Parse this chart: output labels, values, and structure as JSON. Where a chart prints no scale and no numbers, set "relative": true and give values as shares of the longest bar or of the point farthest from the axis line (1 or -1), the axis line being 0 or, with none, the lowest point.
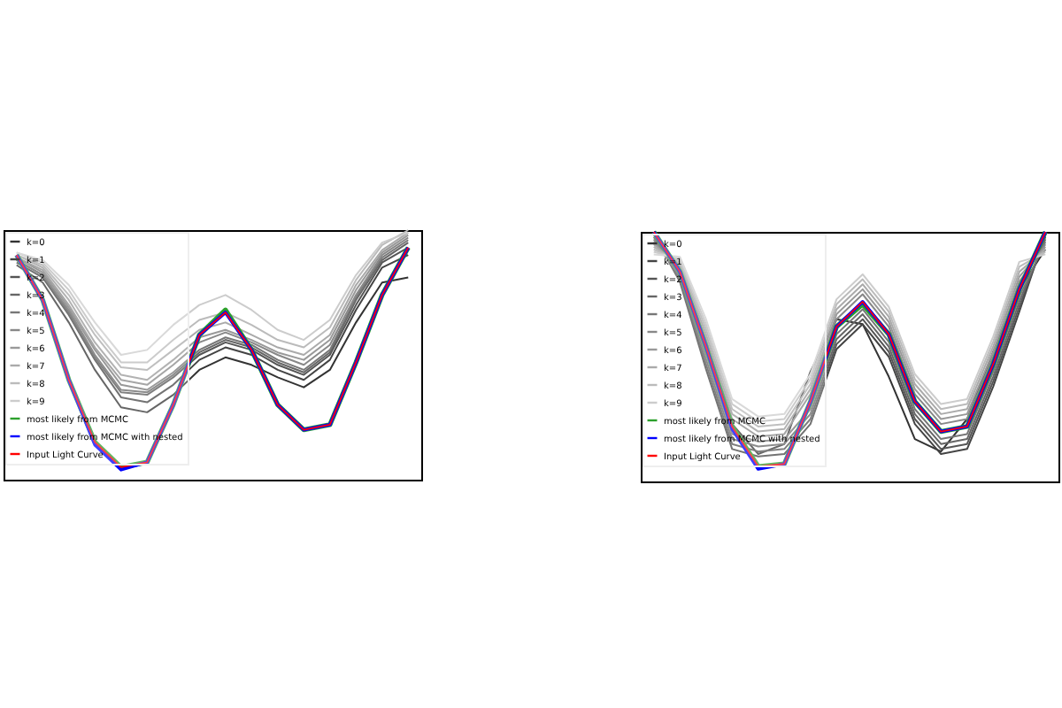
{
  "chart_data": [
    {
      "type": "line",
      "relative": true,
      "legend": "top left",
      "categories": [
        null,
        null,
        null,
        null,
        null,
        null,
        null,
        null,
        null,
        null,
        null,
        null,
        null,
        null,
        null,
        null
      ],
      "series": [
        {
          "name": "k=0",
          "color": "#333333",
          "values": [
            0.86,
            0.79,
            0.63,
            0.44,
            0.29,
            0.27,
            0.34,
            0.44,
            0.49,
            0.46,
            0.41,
            0.37,
            0.44,
            0.63,
            0.79,
            0.81
          ]
        },
        {
          "name": "k=1",
          "color": "#444444",
          "values": [
            0.87,
            0.81,
            0.66,
            0.48,
            0.33,
            0.31,
            0.38,
            0.48,
            0.53,
            0.5,
            0.44,
            0.4,
            0.48,
            0.68,
            0.85,
            0.9
          ]
        },
        {
          "name": "k=2",
          "color": "#555555",
          "values": [
            0.88,
            0.82,
            0.67,
            0.49,
            0.35,
            0.34,
            0.41,
            0.5,
            0.55,
            0.52,
            0.46,
            0.42,
            0.5,
            0.7,
            0.87,
            0.93
          ]
        },
        {
          "name": "k=3",
          "color": "#666666",
          "values": [
            0.88,
            0.82,
            0.68,
            0.5,
            0.36,
            0.35,
            0.42,
            0.51,
            0.56,
            0.53,
            0.47,
            0.43,
            0.51,
            0.72,
            0.88,
            0.95
          ]
        },
        {
          "name": "k=4",
          "color": "#777777",
          "values": [
            0.89,
            0.83,
            0.69,
            0.52,
            0.38,
            0.36,
            0.43,
            0.52,
            0.57,
            0.54,
            0.48,
            0.44,
            0.52,
            0.73,
            0.89,
            0.96
          ]
        },
        {
          "name": "k=5",
          "color": "#888888",
          "values": [
            0.89,
            0.84,
            0.7,
            0.53,
            0.4,
            0.38,
            0.46,
            0.55,
            0.59,
            0.55,
            0.5,
            0.46,
            0.54,
            0.74,
            0.9,
            0.97
          ]
        },
        {
          "name": "k=6",
          "color": "#999999",
          "values": [
            0.9,
            0.85,
            0.72,
            0.55,
            0.42,
            0.4,
            0.48,
            0.57,
            0.6,
            0.56,
            0.51,
            0.48,
            0.56,
            0.76,
            0.91,
            0.98
          ]
        },
        {
          "name": "k=7",
          "color": "#aaaaaa",
          "values": [
            0.9,
            0.86,
            0.74,
            0.58,
            0.45,
            0.44,
            0.52,
            0.6,
            0.63,
            0.58,
            0.53,
            0.5,
            0.58,
            0.78,
            0.92,
            0.99
          ]
        },
        {
          "name": "k=8",
          "color": "#bbbbbb",
          "values": [
            0.91,
            0.87,
            0.76,
            0.6,
            0.47,
            0.47,
            0.56,
            0.64,
            0.67,
            0.62,
            0.56,
            0.53,
            0.61,
            0.8,
            0.94,
            1.0
          ]
        },
        {
          "name": "k=9",
          "color": "#cccccc",
          "values": [
            0.91,
            0.88,
            0.78,
            0.63,
            0.5,
            0.52,
            0.62,
            0.7,
            0.74,
            0.68,
            0.6,
            0.56,
            0.64,
            0.82,
            0.95,
            0.99
          ]
        },
        {
          "name": "most likely from MCMC",
          "color": "#2ca02c",
          "values": [
            0.9,
            0.72,
            0.4,
            0.15,
            0.05,
            0.07,
            0.3,
            0.58,
            0.68,
            0.52,
            0.3,
            0.2,
            0.22,
            0.47,
            0.74,
            0.93
          ]
        },
        {
          "name": "most likely from MCMC with nested",
          "color": "#0000ff",
          "values": [
            0.9,
            0.72,
            0.4,
            0.14,
            0.04,
            0.07,
            0.3,
            0.58,
            0.67,
            0.52,
            0.3,
            0.2,
            0.22,
            0.47,
            0.74,
            0.93
          ]
        },
        {
          "name": "Input Light Curve",
          "color": "#ff0000",
          "values": [
            0.9,
            0.72,
            0.4,
            0.15,
            0.05,
            0.07,
            0.3,
            0.58,
            0.67,
            0.52,
            0.3,
            0.2,
            0.22,
            0.47,
            0.74,
            0.93
          ]
        }
      ]
    },
    {
      "type": "line",
      "relative": true,
      "legend": "top left",
      "categories": [
        null,
        null,
        null,
        null,
        null,
        null,
        null,
        null,
        null,
        null,
        null,
        null,
        null,
        null,
        null,
        null
      ],
      "series": [
        {
          "name": "k=0",
          "color": "#333333",
          "values": [
            1.0,
            0.84,
            0.53,
            0.23,
            0.11,
            0.15,
            0.44,
            0.65,
            0.63,
            0.42,
            0.17,
            0.12,
            0.25,
            0.52,
            0.77,
            0.93
          ]
        },
        {
          "name": "k=1",
          "color": "#444444",
          "values": [
            0.99,
            0.8,
            0.45,
            0.13,
            0.1,
            0.11,
            0.23,
            0.53,
            0.63,
            0.5,
            0.23,
            0.11,
            0.13,
            0.38,
            0.68,
            0.99
          ]
        },
        {
          "name": "k=2",
          "color": "#555555",
          "values": [
            0.98,
            0.81,
            0.47,
            0.15,
            0.12,
            0.13,
            0.25,
            0.55,
            0.65,
            0.52,
            0.25,
            0.13,
            0.15,
            0.4,
            0.7,
            0.98
          ]
        },
        {
          "name": "k=3",
          "color": "#666666",
          "values": [
            0.97,
            0.82,
            0.49,
            0.17,
            0.14,
            0.15,
            0.27,
            0.57,
            0.67,
            0.54,
            0.27,
            0.15,
            0.17,
            0.42,
            0.72,
            0.97
          ]
        },
        {
          "name": "k=4",
          "color": "#777777",
          "values": [
            0.96,
            0.83,
            0.51,
            0.19,
            0.16,
            0.17,
            0.29,
            0.59,
            0.69,
            0.56,
            0.29,
            0.17,
            0.19,
            0.44,
            0.74,
            0.96
          ]
        },
        {
          "name": "k=5",
          "color": "#888888",
          "values": [
            0.95,
            0.86,
            0.57,
            0.25,
            0.18,
            0.19,
            0.35,
            0.65,
            0.75,
            0.62,
            0.35,
            0.23,
            0.25,
            0.5,
            0.8,
            0.95
          ]
        },
        {
          "name": "k=6",
          "color": "#999999",
          "values": [
            0.94,
            0.87,
            0.59,
            0.27,
            0.2,
            0.21,
            0.37,
            0.67,
            0.77,
            0.64,
            0.37,
            0.25,
            0.27,
            0.52,
            0.82,
            0.94
          ]
        },
        {
          "name": "k=7",
          "color": "#aaaaaa",
          "values": [
            0.93,
            0.88,
            0.61,
            0.29,
            0.22,
            0.23,
            0.39,
            0.69,
            0.79,
            0.66,
            0.39,
            0.27,
            0.29,
            0.54,
            0.84,
            0.93
          ]
        },
        {
          "name": "k=8",
          "color": "#bbbbbb",
          "values": [
            0.92,
            0.89,
            0.63,
            0.31,
            0.24,
            0.25,
            0.41,
            0.71,
            0.81,
            0.68,
            0.41,
            0.29,
            0.31,
            0.56,
            0.86,
            0.92
          ]
        },
        {
          "name": "k=9",
          "color": "#cccccc",
          "values": [
            0.91,
            0.9,
            0.65,
            0.33,
            0.26,
            0.27,
            0.43,
            0.73,
            0.83,
            0.7,
            0.43,
            0.31,
            0.33,
            0.58,
            0.88,
            0.91
          ]
        },
        {
          "name": "most likely from MCMC",
          "color": "#2ca02c",
          "values": [
            1.0,
            0.84,
            0.54,
            0.22,
            0.06,
            0.07,
            0.32,
            0.62,
            0.71,
            0.59,
            0.32,
            0.2,
            0.22,
            0.47,
            0.77,
            1.0
          ]
        },
        {
          "name": "most likely from MCMC with nested",
          "color": "#0000ff",
          "values": [
            1.0,
            0.84,
            0.54,
            0.21,
            0.05,
            0.07,
            0.32,
            0.62,
            0.72,
            0.59,
            0.32,
            0.2,
            0.22,
            0.47,
            0.77,
            1.0
          ]
        },
        {
          "name": "Input Light Curve",
          "color": "#ff0000",
          "values": [
            1.0,
            0.84,
            0.54,
            0.22,
            0.06,
            0.07,
            0.32,
            0.62,
            0.72,
            0.59,
            0.32,
            0.2,
            0.22,
            0.47,
            0.77,
            1.0
          ]
        }
      ]
    }
  ]
}
